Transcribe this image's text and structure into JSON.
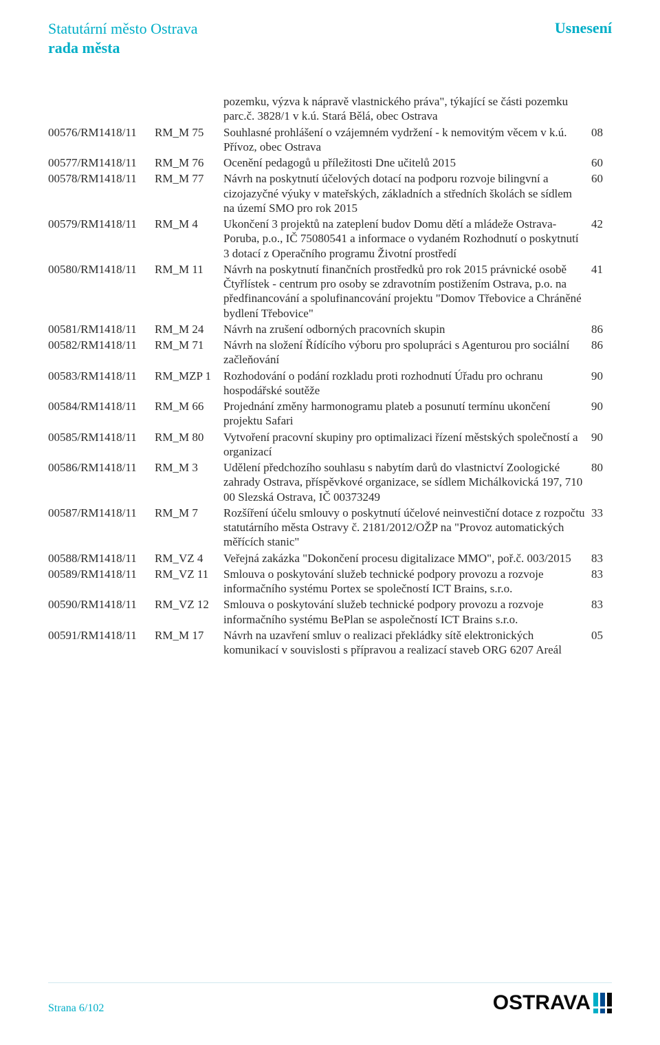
{
  "header": {
    "left_line1": "Statutární město Ostrava",
    "left_line2": "rada města",
    "right": "Usnesení"
  },
  "intro": "pozemku, výzva k nápravě vlastnického práva\", týkající se části pozemku parc.č. 3828/1 v k.ú. Stará Bělá, obec Ostrava",
  "rows": [
    {
      "id": "00576/RM1418/11",
      "code": "RM_M 75",
      "desc": "Souhlasné prohlášení o vzájemném vydržení - k nemovitým věcem v k.ú. Přívoz, obec Ostrava",
      "num": "08"
    },
    {
      "id": "00577/RM1418/11",
      "code": "RM_M 76",
      "desc": "Ocenění pedagogů u příležitosti Dne učitelů 2015",
      "num": "60"
    },
    {
      "id": "00578/RM1418/11",
      "code": "RM_M 77",
      "desc": "Návrh na poskytnutí účelových dotací na podporu rozvoje bilingvní a cizojazyčné výuky v mateřských, základních a středních školách se sídlem na území SMO pro rok 2015",
      "num": "60"
    },
    {
      "id": "00579/RM1418/11",
      "code": "RM_M 4",
      "desc": "Ukončení 3 projektů na zateplení budov Domu dětí a mládeže Ostrava-Poruba, p.o., IČ 75080541 a informace o vydaném Rozhodnutí o poskytnutí 3 dotací z Operačního programu Životní prostředí",
      "num": "42"
    },
    {
      "id": "00580/RM1418/11",
      "code": "RM_M 11",
      "desc": "Návrh na poskytnutí finančních prostředků pro rok 2015 právnické osobě Čtyřlístek - centrum pro osoby se zdravotním postižením Ostrava, p.o. na předfinancování a spolufinancování projektu \"Domov Třebovice a Chráněné bydlení Třebovice\"",
      "num": "41"
    },
    {
      "id": "00581/RM1418/11",
      "code": "RM_M 24",
      "desc": "Návrh na zrušení odborných pracovních skupin",
      "num": "86"
    },
    {
      "id": "00582/RM1418/11",
      "code": "RM_M 71",
      "desc": "Návrh na složení Řídícího výboru pro spolupráci s Agenturou pro sociální začleňování",
      "num": "86"
    },
    {
      "id": "00583/RM1418/11",
      "code": "RM_MZP 1",
      "desc": "Rozhodování o podání rozkladu proti rozhodnutí Úřadu pro ochranu hospodářské soutěže",
      "num": "90"
    },
    {
      "id": "00584/RM1418/11",
      "code": "RM_M 66",
      "desc": "Projednání změny harmonogramu plateb a posunutí termínu ukončení projektu Safari",
      "num": "90"
    },
    {
      "id": "00585/RM1418/11",
      "code": "RM_M 80",
      "desc": "Vytvoření pracovní skupiny pro optimalizaci řízení městských společností a organizací",
      "num": "90"
    },
    {
      "id": "00586/RM1418/11",
      "code": "RM_M 3",
      "desc": "Udělení předchozího souhlasu s nabytím darů do vlastnictví Zoologické zahrady Ostrava, příspěvkové organizace, se sídlem Michálkovická 197, 710 00 Slezská Ostrava, IČ 00373249",
      "num": "80"
    },
    {
      "id": "00587/RM1418/11",
      "code": "RM_M 7",
      "desc": "Rozšíření účelu smlouvy o poskytnutí účelové neinvestiční dotace z rozpočtu statutárního města Ostravy č. 2181/2012/OŽP na \"Provoz automatických měřících stanic\"",
      "num": "33"
    },
    {
      "id": "00588/RM1418/11",
      "code": "RM_VZ 4",
      "desc": "Veřejná zakázka \"Dokončení procesu digitalizace MMO\", poř.č. 003/2015",
      "num": "83"
    },
    {
      "id": "00589/RM1418/11",
      "code": "RM_VZ 11",
      "desc": "Smlouva o poskytování služeb technické podpory provozu a rozvoje informačního systému Portex se společností ICT Brains, s.r.o.",
      "num": "83"
    },
    {
      "id": "00590/RM1418/11",
      "code": "RM_VZ 12",
      "desc": "Smlouva o poskytování služeb technické podpory provozu a rozvoje informačního systému BePlan se aspolečností ICT Brains s.r.o.",
      "num": "83"
    },
    {
      "id": "00591/RM1418/11",
      "code": "RM_M 17",
      "desc": "Návrh na uzavření smluv o realizaci překládky sítě elektronických komunikací v souvislosti s přípravou a realizací staveb ORG 6207 Areál",
      "num": "05"
    }
  ],
  "footer": {
    "page": "Strana 6/102",
    "logo_text": "OSTRAVA",
    "excl_colors": [
      "#00aec7",
      "#004a8f",
      "#0a0a0a"
    ]
  },
  "colors": {
    "brand": "#00aec7",
    "text": "#2b2b2b"
  }
}
